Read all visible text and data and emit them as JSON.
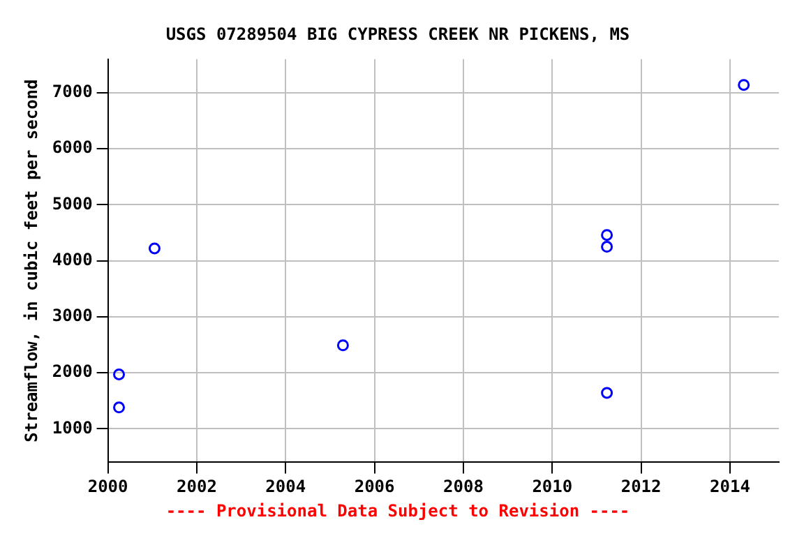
{
  "chart_data": {
    "type": "scatter",
    "title": "USGS 07289504 BIG CYPRESS CREEK NR PICKENS, MS",
    "ylabel": "Streamflow, in cubic feet per second",
    "annotations": [
      "---- Provisional Data Subject to Revision ----"
    ],
    "x": [
      2000.25,
      2000.25,
      2001.05,
      2005.29,
      2011.23,
      2011.23,
      2011.23,
      2014.31
    ],
    "series": [
      {
        "color": "#0000ff",
        "values": [
          1970,
          1380,
          4220,
          2490,
          4460,
          4250,
          1640,
          7140
        ]
      }
    ],
    "xlim": [
      2000,
      2015.1
    ],
    "xticks": [
      2000,
      2002,
      2004,
      2006,
      2008,
      2010,
      2012,
      2014
    ],
    "ylim": [
      400,
      7600
    ],
    "yticks": [
      1000,
      2000,
      3000,
      4000,
      5000,
      6000,
      7000
    ],
    "grid": true,
    "marker": "circle"
  }
}
